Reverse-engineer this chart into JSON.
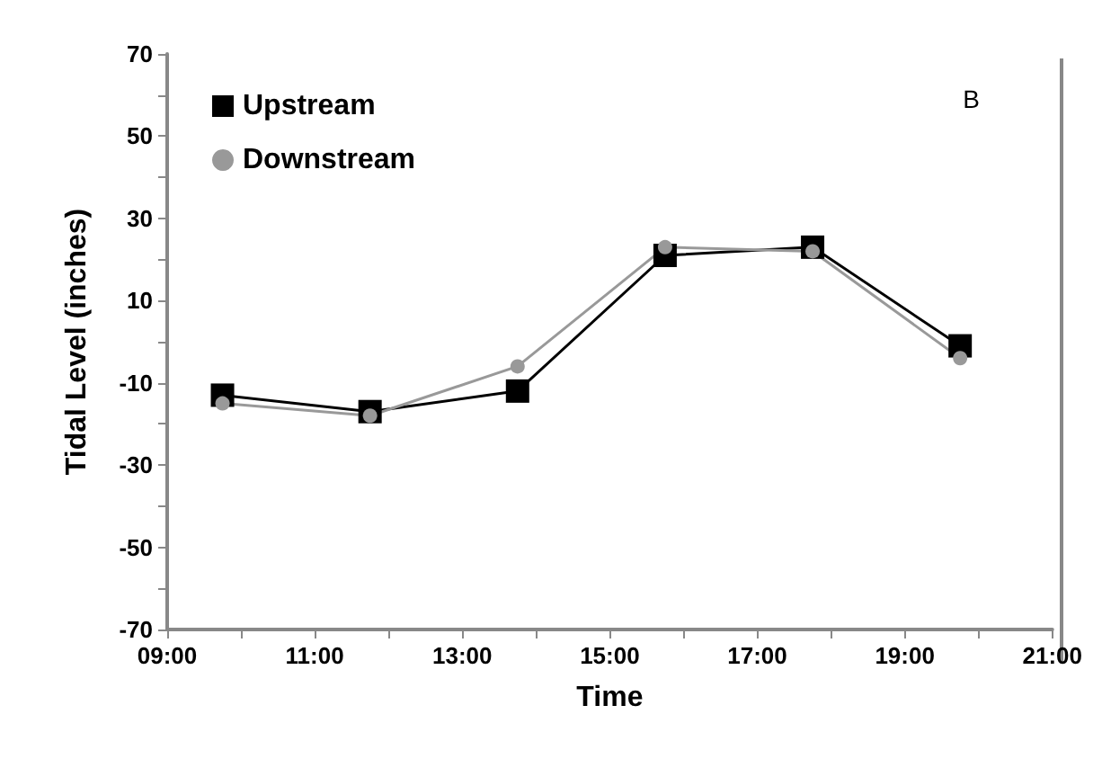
{
  "chart_data": {
    "type": "line",
    "xlabel": "Time",
    "ylabel": "Tidal Level (inches)",
    "annotations": [
      "B"
    ],
    "x": [
      9.75,
      11.75,
      13.75,
      15.75,
      17.75,
      19.75
    ],
    "series": [
      {
        "name": "Upstream",
        "color": "#000000",
        "marker": "square",
        "values": [
          -13,
          -17,
          -12,
          21,
          23,
          -1
        ]
      },
      {
        "name": "Downstream",
        "color": "#999999",
        "marker": "circle",
        "values": [
          -15,
          -18,
          -6,
          23,
          22,
          -4
        ]
      }
    ],
    "xlim": [
      9,
      21
    ],
    "xticks": [
      {
        "value": 9,
        "label": "09:00"
      },
      {
        "value": 10,
        "label": null
      },
      {
        "value": 11,
        "label": "11:00"
      },
      {
        "value": 12,
        "label": null
      },
      {
        "value": 13,
        "label": "13:00"
      },
      {
        "value": 14,
        "label": null
      },
      {
        "value": 15,
        "label": "15:00"
      },
      {
        "value": 16,
        "label": null
      },
      {
        "value": 17,
        "label": "17:00"
      },
      {
        "value": 18,
        "label": null
      },
      {
        "value": 19,
        "label": "19:00"
      },
      {
        "value": 20,
        "label": null
      },
      {
        "value": 21,
        "label": "21:00"
      }
    ],
    "ylim": [
      -70,
      70
    ],
    "yticks": [
      -70,
      {
        "value": -60,
        "label": null
      },
      -50,
      {
        "value": -40,
        "label": null
      },
      -30,
      {
        "value": -20,
        "label": null
      },
      -10,
      {
        "value": 0,
        "label": null
      },
      10,
      {
        "value": 20,
        "label": null
      },
      30,
      {
        "value": 40,
        "label": null
      },
      50,
      {
        "value": 60,
        "label": null
      },
      70
    ],
    "legend": "top left",
    "line_style": "solid"
  }
}
